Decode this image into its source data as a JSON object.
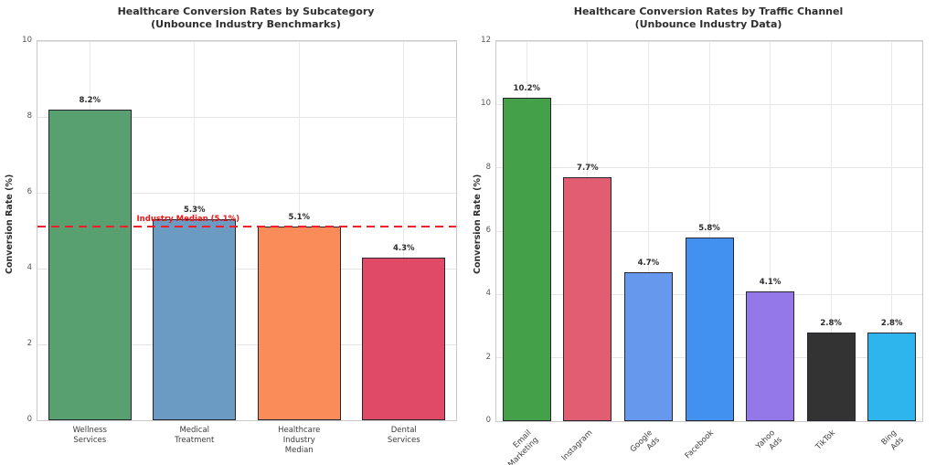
{
  "figure_background": "#ffffff",
  "chart_data": [
    {
      "type": "bar",
      "title": "Healthcare Conversion Rates by Subcategory",
      "subtitle": "(Unbounce Industry Benchmarks)",
      "ylabel": "Conversion Rate (%)",
      "xlabel": "",
      "ylim": [
        0,
        10
      ],
      "yticks": [
        0,
        2,
        4,
        6,
        8,
        10
      ],
      "grid": true,
      "categories": [
        "Wellness\nServices",
        "Medical\nTreatment",
        "Healthcare\nIndustry\nMedian",
        "Dental\nServices"
      ],
      "values": [
        8.2,
        5.3,
        5.1,
        4.3
      ],
      "value_labels": [
        "8.2%",
        "5.3%",
        "5.1%",
        "4.3%"
      ],
      "bar_colors": [
        "#58a070",
        "#6b9bc3",
        "#fa8c5a",
        "#e04a66"
      ],
      "bar_edge_color": "#26262e",
      "x_label_rotation": 0,
      "reference_line": {
        "y": 5.1,
        "label": "Industry Median (5.1%)",
        "color": "#ee1515",
        "style": "dashed"
      }
    },
    {
      "type": "bar",
      "title": "Healthcare Conversion Rates by Traffic Channel",
      "subtitle": "(Unbounce Industry Data)",
      "ylabel": "Conversion Rate (%)",
      "xlabel": "",
      "ylim": [
        0,
        12
      ],
      "yticks": [
        0,
        2,
        4,
        6,
        8,
        10,
        12
      ],
      "grid": true,
      "categories": [
        "Email\nMarketing",
        "Instagram",
        "Google\nAds",
        "Facebook",
        "Yahoo\nAds",
        "TikTok",
        "Bing\nAds"
      ],
      "values": [
        10.2,
        7.7,
        4.7,
        5.8,
        4.1,
        2.8,
        2.8
      ],
      "value_labels": [
        "10.2%",
        "7.7%",
        "4.7%",
        "5.8%",
        "4.1%",
        "2.8%",
        "2.8%"
      ],
      "bar_colors": [
        "#45a04a",
        "#e25c72",
        "#6698ee",
        "#4291f1",
        "#9478ea",
        "#333333",
        "#2eb5ee"
      ],
      "bar_edge_color": "#26262e",
      "x_label_rotation": 45,
      "reference_line": null
    }
  ]
}
